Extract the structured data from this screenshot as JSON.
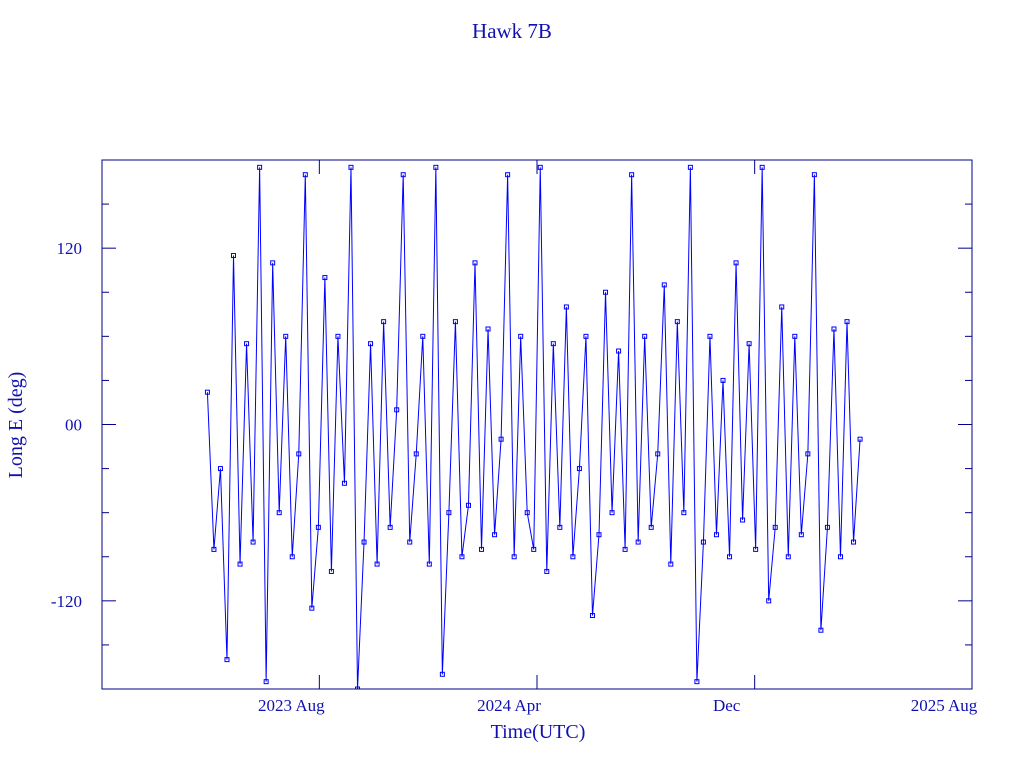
{
  "chart_data": {
    "type": "line",
    "title": "Hawk 7B",
    "xlabel": "Time(UTC)",
    "ylabel": "Long E (deg)",
    "color": "#0000ff",
    "axis_color": "#00008b",
    "xlim": [
      2022.917,
      2025.583
    ],
    "xticks": [
      {
        "value": 2023.583,
        "label": "2023 Aug"
      },
      {
        "value": 2024.25,
        "label": "2024 Apr"
      },
      {
        "value": 2024.917,
        "label": "Dec"
      },
      {
        "value": 2025.583,
        "label": "2025 Aug"
      }
    ],
    "ylim": [
      -180,
      180
    ],
    "yticks": [
      -120,
      {
        "value": 0,
        "label": "00"
      },
      120
    ],
    "y_minor_ticks": [
      -150,
      -90,
      -60,
      -30,
      30,
      60,
      90,
      150
    ],
    "x": [
      2023.24,
      2023.26,
      2023.28,
      2023.3,
      2023.32,
      2023.34,
      2023.36,
      2023.38,
      2023.4,
      2023.42,
      2023.44,
      2023.46,
      2023.48,
      2023.5,
      2023.52,
      2023.54,
      2023.56,
      2023.58,
      2023.6,
      2023.62,
      2023.64,
      2023.66,
      2023.68,
      2023.7,
      2023.72,
      2023.74,
      2023.76,
      2023.78,
      2023.8,
      2023.82,
      2023.84,
      2023.86,
      2023.88,
      2023.9,
      2023.92,
      2023.94,
      2023.96,
      2023.98,
      2024.0,
      2024.02,
      2024.04,
      2024.06,
      2024.08,
      2024.1,
      2024.12,
      2024.14,
      2024.16,
      2024.18,
      2024.2,
      2024.22,
      2024.24,
      2024.26,
      2024.28,
      2024.3,
      2024.32,
      2024.34,
      2024.36,
      2024.38,
      2024.4,
      2024.42,
      2024.44,
      2024.46,
      2024.48,
      2024.5,
      2024.52,
      2024.54,
      2024.56,
      2024.58,
      2024.6,
      2024.62,
      2024.64,
      2024.66,
      2024.68,
      2024.7,
      2024.72,
      2024.74,
      2024.76,
      2024.78,
      2024.8,
      2024.82,
      2024.84,
      2024.86,
      2024.88,
      2024.9,
      2024.92,
      2024.94,
      2024.96,
      2024.98,
      2025.0,
      2025.02,
      2025.04,
      2025.06,
      2025.08,
      2025.1,
      2025.12,
      2025.14,
      2025.16,
      2025.18,
      2025.2,
      2025.22,
      2025.24
    ],
    "values": [
      22,
      -85,
      -30,
      -160,
      115,
      -95,
      55,
      -80,
      175,
      -175,
      110,
      -60,
      60,
      -90,
      -20,
      170,
      -125,
      -70,
      100,
      -100,
      60,
      -40,
      175,
      -180,
      -80,
      55,
      -95,
      70,
      -70,
      10,
      170,
      -80,
      -20,
      60,
      -95,
      175,
      -170,
      -60,
      70,
      -90,
      -55,
      110,
      -85,
      65,
      -75,
      -10,
      170,
      -90,
      60,
      -60,
      -85,
      175,
      -100,
      55,
      -70,
      80,
      -90,
      -30,
      60,
      -130,
      -75,
      90,
      -60,
      50,
      -85,
      170,
      -80,
      60,
      -70,
      -20,
      95,
      -95,
      70,
      -60,
      175,
      -175,
      -80,
      60,
      -75,
      30,
      -90,
      110,
      -65,
      55,
      -85,
      175,
      -120,
      -70,
      80,
      -90,
      60,
      -75,
      -20,
      170,
      -140,
      -70,
      65,
      -90,
      70,
      -80,
      -10
    ]
  }
}
